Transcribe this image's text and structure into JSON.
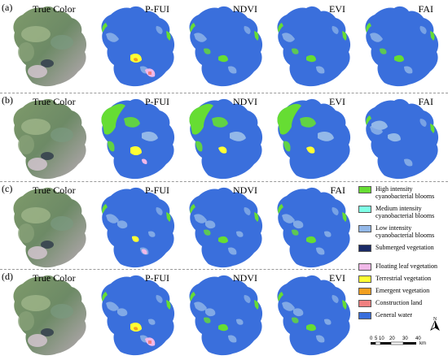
{
  "rows": [
    {
      "label": "(a)",
      "panels": [
        "True Color",
        "P-FUI",
        "NDVI",
        "EVI",
        "FAI"
      ]
    },
    {
      "label": "(b)",
      "panels": [
        "True Color",
        "P-FUI",
        "NDVI",
        "EVI",
        "FAI"
      ]
    },
    {
      "label": "(c)",
      "panels": [
        "True Color",
        "P-FUI",
        "NDVI",
        "FAI"
      ]
    },
    {
      "label": "(d)",
      "panels": [
        "True Color",
        "P-FUI",
        "NDVI",
        "EVI"
      ]
    }
  ],
  "legend": [
    {
      "label": "High intensity cyanobacterial blooms",
      "color": "#66dd33"
    },
    {
      "label": "Medium intensity cyanobacterial blooms",
      "color": "#7fffe6"
    },
    {
      "label": "Low intensity cyanobacterial blooms",
      "color": "#93b8e8"
    },
    {
      "label": "Submerged vegetation",
      "color": "#1a2a66"
    },
    {
      "label": "Floating leaf vegetation",
      "color": "#f0b8e8"
    },
    {
      "label": "Terrestrial vegetation",
      "color": "#ffff33"
    },
    {
      "label": "Emergent vegetation",
      "color": "#f2a020"
    },
    {
      "label": "Construction land",
      "color": "#f08080"
    },
    {
      "label": "General water",
      "color": "#3a6fdc"
    }
  ],
  "scalebar": {
    "ticks": [
      "0",
      "5",
      "10",
      "20",
      "30",
      "40"
    ],
    "unit": "km"
  },
  "north_label": "N",
  "colors": {
    "water": "#3a6fdc",
    "bloom_low": "#93b8e8",
    "bloom_high": "#66dd33",
    "terrestrial": "#ffff33",
    "floating": "#f0b8e8"
  }
}
